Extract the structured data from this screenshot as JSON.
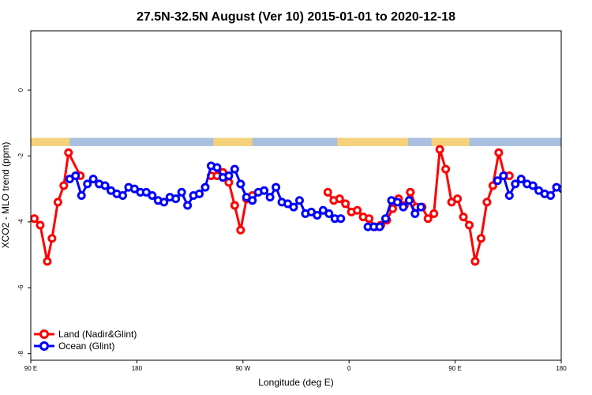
{
  "chart_data": {
    "type": "line",
    "title": "27.5N-32.5N August (Ver 10)   2015-01-01 to 2020-12-18",
    "xlabel": "Longitude (deg E)",
    "ylabel": "XCO2 - MLO trend (ppm)",
    "xlim": [
      90,
      540
    ],
    "ylim": [
      -8.2,
      1.8
    ],
    "x_ticks": [
      {
        "value": 90,
        "label": "90 E"
      },
      {
        "value": 180,
        "label": "180"
      },
      {
        "value": 270,
        "label": "90 W"
      },
      {
        "value": 360,
        "label": "0"
      },
      {
        "value": 450,
        "label": "90 E"
      },
      {
        "value": 540,
        "label": "180"
      }
    ],
    "y_ticks": [
      {
        "value": 0,
        "label": "0"
      },
      {
        "value": -2,
        "label": "-2"
      },
      {
        "value": -4,
        "label": "-4"
      },
      {
        "value": -6,
        "label": "-6"
      },
      {
        "value": -8,
        "label": "-8"
      }
    ],
    "grid": false,
    "legend_position": "bottom-left",
    "land_band": {
      "y_top": -1.45,
      "y_bottom": -1.7,
      "land_color": "#f5d27a",
      "ocean_color": "#a9bfdf",
      "land_ranges": [
        [
          90,
          123
        ],
        [
          245,
          278
        ],
        [
          350,
          410
        ],
        [
          430,
          462
        ]
      ]
    },
    "series": [
      {
        "name": "Land (Nadir&Glint)",
        "color": "#ff0000",
        "segments": [
          {
            "x": [
              93,
              98,
              104,
              108,
              113,
              118,
              122,
              132
            ],
            "y": [
              -3.9,
              -4.1,
              -5.2,
              -4.5,
              -3.4,
              -2.9,
              -1.9,
              -2.6
            ]
          },
          {
            "x": [
              243,
              248,
              253,
              258,
              263,
              268,
              273,
              278
            ],
            "y": [
              -2.6,
              -2.6,
              -2.5,
              -2.8,
              -3.5,
              -4.25,
              -3.3,
              -3.2
            ]
          },
          {
            "x": [
              342,
              347,
              352,
              357,
              362,
              367,
              372,
              377,
              382,
              387,
              392,
              397,
              402,
              407,
              412,
              417
            ],
            "y": [
              -3.1,
              -3.35,
              -3.3,
              -3.45,
              -3.7,
              -3.65,
              -3.85,
              -3.9,
              -4.15,
              -4.1,
              -3.95,
              -3.6,
              -3.3,
              -3.5,
              -3.1,
              -3.55
            ]
          },
          {
            "x": [
              412,
              417,
              422,
              427,
              432,
              437,
              442,
              447,
              452,
              457,
              462,
              467,
              472,
              477,
              482,
              487,
              492,
              496
            ],
            "y": [
              -3.1,
              -3.55,
              -3.55,
              -3.9,
              -3.75,
              -1.8,
              -2.4,
              -3.4,
              -3.3,
              -3.85,
              -4.1,
              -5.2,
              -4.5,
              -3.4,
              -2.9,
              -1.9,
              -2.6,
              -2.6
            ]
          }
        ]
      },
      {
        "name": "Ocean (Glint)",
        "color": "#0000ff",
        "segments": [
          {
            "x": [
              123,
              128,
              133,
              138,
              143,
              148,
              153,
              158,
              163,
              168,
              173,
              178,
              183,
              188,
              193,
              198,
              203,
              208,
              213,
              218,
              223,
              228,
              233,
              238,
              243,
              248,
              253,
              258,
              263,
              268,
              273,
              278,
              283,
              288,
              293,
              298,
              303,
              308,
              313,
              318,
              323,
              328,
              333,
              338,
              343,
              348,
              353
            ],
            "y": [
              -2.7,
              -2.6,
              -3.2,
              -2.85,
              -2.7,
              -2.85,
              -2.9,
              -3.05,
              -3.15,
              -3.2,
              -2.95,
              -3.0,
              -3.1,
              -3.1,
              -3.2,
              -3.35,
              -3.4,
              -3.25,
              -3.3,
              -3.1,
              -3.5,
              -3.2,
              -3.15,
              -2.95,
              -2.3,
              -2.35,
              -2.65,
              -2.6,
              -2.4,
              -2.85,
              -3.25,
              -3.35,
              -3.1,
              -3.05,
              -3.25,
              -2.95,
              -3.4,
              -3.45,
              -3.55,
              -3.35,
              -3.75,
              -3.7,
              -3.8,
              -3.65,
              -3.75,
              -3.9,
              -3.9
            ]
          },
          {
            "x": [
              376,
              381,
              386,
              391,
              396,
              401,
              406,
              411,
              416,
              421
            ],
            "y": [
              -4.15,
              -4.15,
              -4.15,
              -3.9,
              -3.35,
              -3.4,
              -3.55,
              -3.35,
              -3.75,
              -3.55
            ]
          },
          {
            "x": [
              486,
              491,
              496,
              501,
              506,
              511,
              516,
              521,
              526,
              531,
              536,
              541
            ],
            "y": [
              -2.75,
              -2.6,
              -3.2,
              -2.85,
              -2.7,
              -2.85,
              -2.9,
              -3.05,
              -3.15,
              -3.2,
              -2.95,
              -3.0
            ]
          }
        ]
      }
    ]
  }
}
